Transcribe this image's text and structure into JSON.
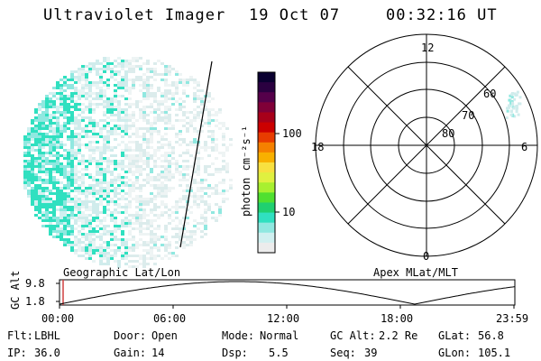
{
  "header": {
    "instrument": "Ultraviolet Imager",
    "date": "19 Oct 07",
    "time": "00:32:16 UT"
  },
  "colorbar": {
    "unit_label": "photon cm⁻²s⁻¹",
    "ticks": [
      "100",
      "10"
    ],
    "colors": [
      "#0a0030",
      "#2a0040",
      "#55004a",
      "#800038",
      "#a8001a",
      "#cc0000",
      "#e83c00",
      "#f58000",
      "#f8b000",
      "#f8e040",
      "#e0f040",
      "#a8f030",
      "#50e030",
      "#20d070",
      "#30e0c0",
      "#90e8e0",
      "#d0f0f0",
      "#ececec"
    ]
  },
  "polar": {
    "mlt_labels": [
      "12",
      "18",
      "6",
      "0"
    ],
    "lat_labels": [
      "60",
      "70",
      "80"
    ]
  },
  "altitude_plot": {
    "axis_label": "GC Alt",
    "y_ticks": [
      "9.8",
      "1.8"
    ],
    "left_label": "Geographic Lat/Lon",
    "right_label": "Apex  MLat/MLT",
    "x_ticks": [
      "00:00",
      "06:00",
      "12:00",
      "18:00",
      "23:59"
    ]
  },
  "info_rows": [
    [
      {
        "label": "Flt:",
        "value": "LBHL"
      },
      {
        "label": "Door:",
        "value": "Open"
      },
      {
        "label": "Mode:",
        "value": "Normal"
      },
      {
        "label": "GC Alt:",
        "value": "2.2 Re"
      },
      {
        "label": "GLat:",
        "value": "56.8"
      }
    ],
    [
      {
        "label": "IP:",
        "value": "36.0"
      },
      {
        "label": "Gain:",
        "value": "14"
      },
      {
        "label": "Dsp:",
        "value": "5.5"
      },
      {
        "label": "Seq:",
        "value": "39"
      },
      {
        "label": "GLon:",
        "value": "105.1"
      }
    ]
  ]
}
